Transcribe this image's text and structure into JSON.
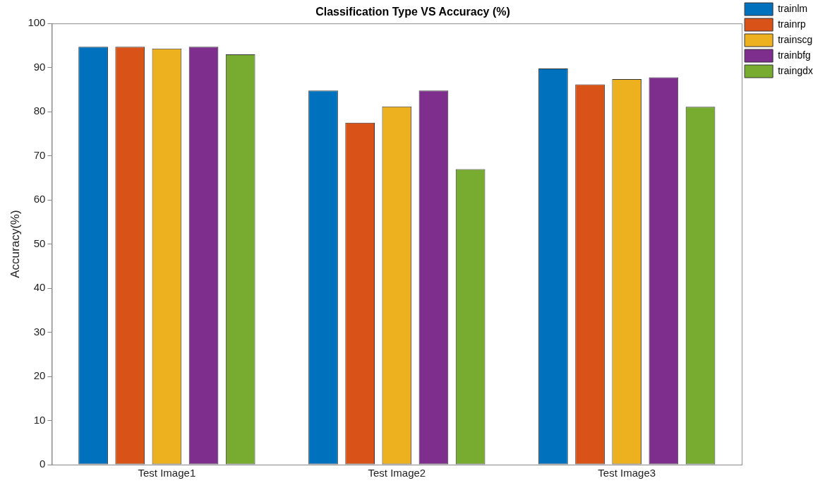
{
  "chart_data": {
    "type": "bar",
    "title": "Classification Type VS Accuracy (%)",
    "ylabel": "Accuracy(%)",
    "categories": [
      "Test Image1",
      "Test Image2",
      "Test Image3"
    ],
    "series": [
      {
        "name": "trainlm",
        "color": "#0072bd",
        "values": [
          94.7,
          84.8,
          89.8
        ]
      },
      {
        "name": "trainrp",
        "color": "#d95319",
        "values": [
          94.7,
          77.5,
          86.2
        ]
      },
      {
        "name": "trainscg",
        "color": "#edb120",
        "values": [
          94.3,
          81.2,
          87.4
        ]
      },
      {
        "name": "trainbfg",
        "color": "#7e2f8e",
        "values": [
          94.7,
          84.8,
          87.8
        ]
      },
      {
        "name": "traingdx",
        "color": "#77ac30",
        "values": [
          93,
          67,
          81.1
        ]
      }
    ],
    "ylim": [
      0,
      100
    ],
    "yticks": [
      0,
      10,
      20,
      30,
      40,
      50,
      60,
      70,
      80,
      90,
      100
    ],
    "grid": false,
    "legend": "top right"
  }
}
